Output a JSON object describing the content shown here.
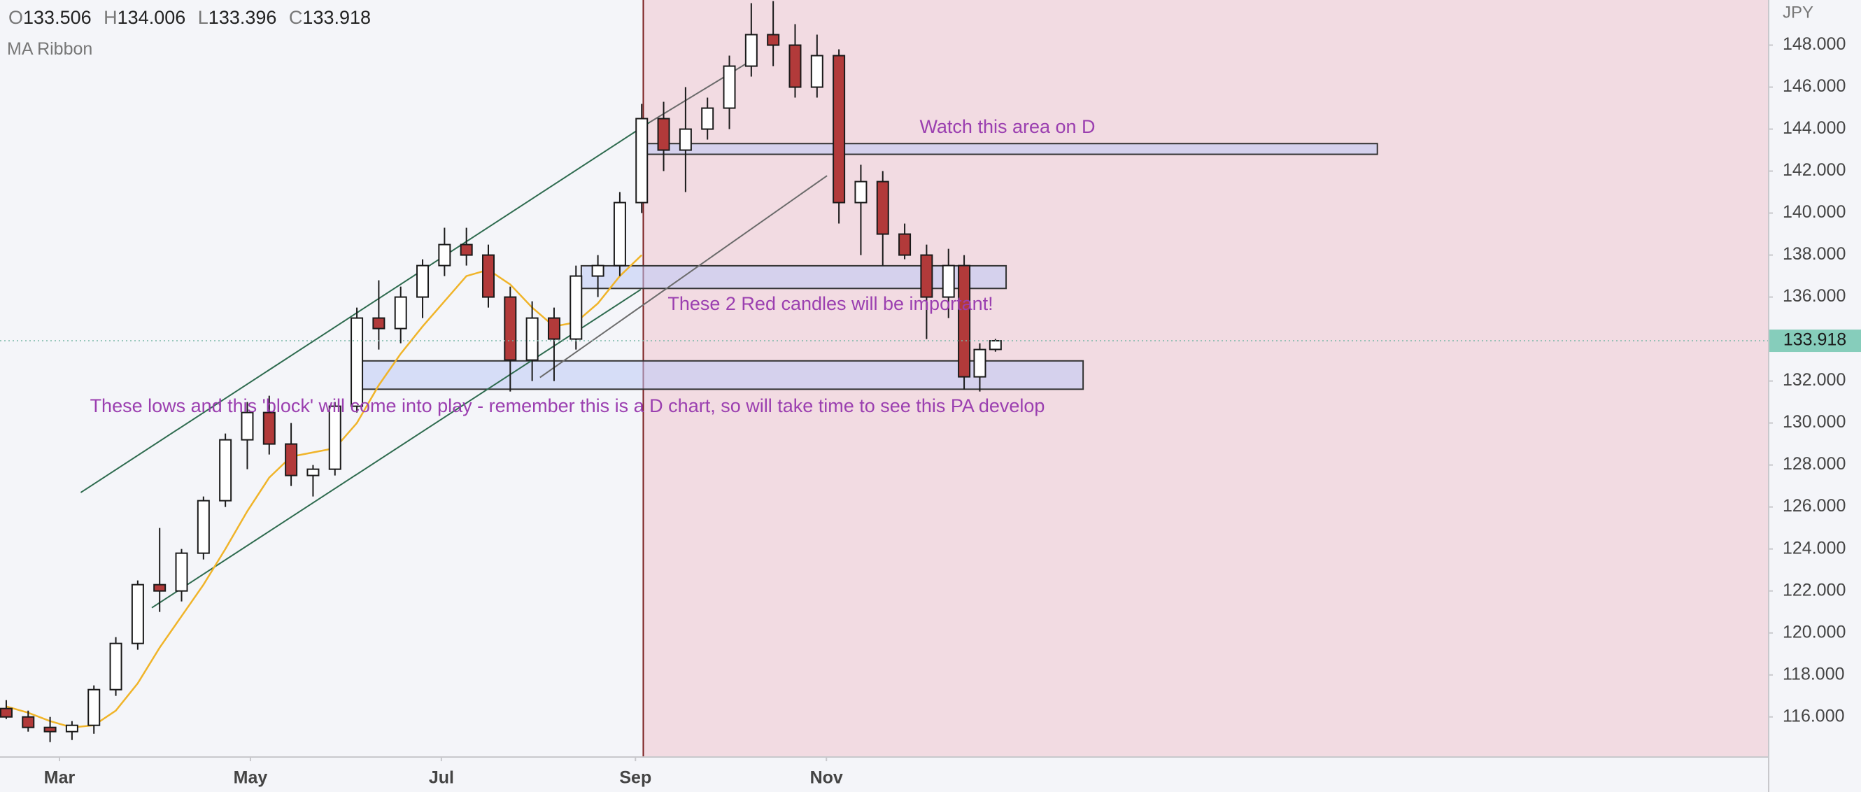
{
  "chart_data": {
    "type": "candlestick",
    "ohlc_labels": [
      "O",
      "H",
      "L",
      "C"
    ],
    "indicator": "MA Ribbon",
    "currency": "JPY",
    "x": [
      42,
      49,
      56,
      63,
      70,
      77,
      84,
      91,
      98,
      105,
      112,
      119,
      126,
      133,
      140,
      147,
      154,
      161,
      168,
      175,
      182,
      189,
      196,
      203,
      210,
      217,
      224,
      231,
      238,
      245,
      252,
      259,
      266,
      273,
      280,
      287,
      294,
      301,
      308,
      315,
      322,
      329,
      336,
      343,
      348,
      353,
      358
    ],
    "open": [
      116.4,
      116.0,
      115.5,
      115.3,
      115.6,
      117.3,
      119.5,
      122.3,
      122.0,
      123.8,
      126.3,
      129.2,
      130.5,
      129.0,
      127.5,
      127.8,
      130.8,
      135.0,
      134.5,
      136.0,
      137.5,
      138.5,
      138.0,
      136.0,
      133.0,
      135.0,
      134.0,
      137.0,
      137.5,
      140.5,
      144.5,
      143.0,
      144.0,
      145.0,
      147.0,
      148.5,
      148.0,
      146.0,
      147.5,
      140.5,
      141.5,
      139.0,
      138.0,
      136.0,
      137.5,
      132.2,
      133.506
    ],
    "high": [
      116.8,
      116.3,
      116.0,
      115.8,
      117.5,
      119.8,
      122.5,
      125.0,
      124.0,
      126.5,
      129.5,
      131.0,
      131.3,
      130.0,
      128.0,
      131.0,
      135.5,
      136.8,
      136.5,
      137.8,
      139.3,
      139.3,
      138.5,
      136.5,
      135.8,
      135.5,
      137.5,
      138.0,
      141.0,
      145.2,
      145.3,
      146.0,
      145.5,
      147.5,
      150.0,
      150.1,
      149.0,
      148.5,
      147.8,
      142.3,
      142.0,
      139.5,
      138.5,
      138.3,
      138.0,
      133.8,
      134.006
    ],
    "low": [
      115.9,
      115.3,
      114.8,
      114.9,
      115.2,
      117.0,
      119.2,
      121.0,
      121.5,
      123.5,
      126.0,
      127.8,
      128.5,
      127.0,
      126.5,
      127.5,
      130.5,
      133.5,
      133.8,
      135.0,
      137.0,
      137.5,
      135.5,
      131.5,
      132.0,
      132.0,
      133.5,
      136.0,
      137.0,
      140.0,
      142.0,
      141.0,
      143.5,
      144.0,
      146.5,
      147.0,
      145.5,
      145.5,
      139.5,
      138.0,
      137.5,
      137.8,
      134.0,
      135.0,
      131.6,
      131.5,
      133.396
    ],
    "close": [
      116.0,
      115.5,
      115.3,
      115.6,
      117.3,
      119.5,
      122.3,
      122.0,
      123.8,
      126.3,
      129.2,
      130.5,
      129.0,
      127.5,
      127.8,
      130.8,
      135.0,
      134.5,
      136.0,
      137.5,
      138.5,
      138.0,
      136.0,
      133.0,
      135.0,
      134.0,
      137.0,
      137.5,
      140.5,
      144.5,
      143.0,
      144.0,
      145.0,
      147.0,
      148.5,
      148.0,
      146.0,
      147.5,
      140.5,
      141.5,
      139.0,
      138.0,
      136.0,
      137.5,
      132.2,
      133.5,
      133.918
    ],
    "ma": {
      "color": "#f0b429",
      "values": [
        116.5,
        116.2,
        115.8,
        115.5,
        115.6,
        116.3,
        117.6,
        119.3,
        120.8,
        122.3,
        124.0,
        125.8,
        127.4,
        128.4,
        128.6,
        128.8,
        130.0,
        131.8,
        133.3,
        134.6,
        135.8,
        137.0,
        137.3,
        136.6,
        135.5,
        134.6,
        134.8,
        135.7,
        137.0,
        138.0,
        null,
        null,
        null,
        null,
        null,
        null,
        null,
        null,
        null,
        null,
        null,
        null,
        null,
        null,
        null,
        null,
        null
      ]
    },
    "up_color": "#ffffff",
    "down_color": "#b23a3a",
    "wick_color": "#1a1a1a",
    "xlim": [
      40,
      605
    ],
    "ylim": [
      114.09,
      150.15
    ],
    "xticks": [
      {
        "value": 59,
        "label": "Mar"
      },
      {
        "value": 120,
        "label": "May"
      },
      {
        "value": 181,
        "label": "Jul"
      },
      {
        "value": 243,
        "label": "Sep"
      },
      {
        "value": 304,
        "label": "Nov"
      }
    ],
    "yticks": [
      {
        "value": 116,
        "label": "116.000"
      },
      {
        "value": 118,
        "label": "118.000"
      },
      {
        "value": 120,
        "label": "120.000"
      },
      {
        "value": 122,
        "label": "122.000"
      },
      {
        "value": 124,
        "label": "124.000"
      },
      {
        "value": 126,
        "label": "126.000"
      },
      {
        "value": 128,
        "label": "128.000"
      },
      {
        "value": 130,
        "label": "130.000"
      },
      {
        "value": 132,
        "label": "132.000"
      },
      {
        "value": 134,
        "label": "134.000"
      },
      {
        "value": 136,
        "label": "136.000"
      },
      {
        "value": 138,
        "label": "138.000"
      },
      {
        "value": 140,
        "label": "140.000"
      },
      {
        "value": 142,
        "label": "142.000"
      },
      {
        "value": 144,
        "label": "144.000"
      },
      {
        "value": 146,
        "label": "146.000"
      },
      {
        "value": 148,
        "label": "148.000"
      }
    ],
    "shade_from": 245.5,
    "shade_color": "#f2dbe2",
    "shade_line_color": "#7a1f1f",
    "zones": [
      {
        "x": [
          244,
          480
        ],
        "y": [
          142.8,
          143.31
        ]
      },
      {
        "x": [
          225.7,
          361.4
        ],
        "y": [
          136.41,
          137.49
        ]
      },
      {
        "x": [
          153.7,
          386
        ],
        "y": [
          131.61,
          132.96
        ]
      }
    ],
    "lines": [
      {
        "x": [
          65.8,
          247.6
        ],
        "y": [
          126.69,
          144.33
        ],
        "color": "#2e6b4f"
      },
      {
        "x": [
          247.6,
          281.8
        ],
        "y": [
          144.33,
          147.43
        ],
        "color": "#6b6b6b"
      },
      {
        "x": [
          88.5,
          244.7
        ],
        "y": [
          121.2,
          136.36
        ],
        "color": "#2e6b4f"
      },
      {
        "x": [
          212.5,
          304.2
        ],
        "y": [
          132.17,
          141.78
        ],
        "color": "#6b6b6b"
      }
    ],
    "annotations": [
      "Watch this area on D",
      "These 2 Red candles will be important!",
      "These lows and this 'block' will come into play - remember this is a D chart, so will take time to see this PA develop"
    ]
  }
}
